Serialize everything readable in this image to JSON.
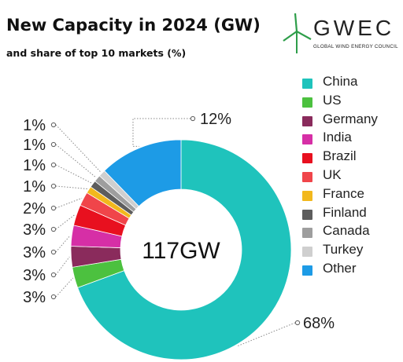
{
  "logo": {
    "wordmark": "GWEC",
    "tagline": "GLOBAL WIND ENERGY COUNCIL"
  },
  "chart_data": {
    "type": "pie",
    "style": "donut",
    "title": "New Capacity in 2024 (GW)",
    "subtitle": "and share of top 10 markets (%)",
    "center_label": "117GW",
    "legend_position": "right",
    "unit": "%",
    "series": [
      {
        "name": "China",
        "value": 68,
        "label": "68%",
        "color": "#1fc3bc"
      },
      {
        "name": "US",
        "value": 3,
        "label": "3%",
        "color": "#4cc13f"
      },
      {
        "name": "Germany",
        "value": 3,
        "label": "3%",
        "color": "#8a2b5c"
      },
      {
        "name": "India",
        "value": 3,
        "label": "3%",
        "color": "#d62fa6"
      },
      {
        "name": "Brazil",
        "value": 3,
        "label": "3%",
        "color": "#e8101f"
      },
      {
        "name": "UK",
        "value": 2,
        "label": "2%",
        "color": "#f0454a"
      },
      {
        "name": "France",
        "value": 1,
        "label": "1%",
        "color": "#f2b81d"
      },
      {
        "name": "Finland",
        "value": 1,
        "label": "1%",
        "color": "#5d5d5d"
      },
      {
        "name": "Canada",
        "value": 1,
        "label": "1%",
        "color": "#9e9e9e"
      },
      {
        "name": "Turkey",
        "value": 1,
        "label": "1%",
        "color": "#cfcfcf"
      },
      {
        "name": "Other",
        "value": 12,
        "label": "12%",
        "color": "#1d9be6"
      }
    ]
  }
}
